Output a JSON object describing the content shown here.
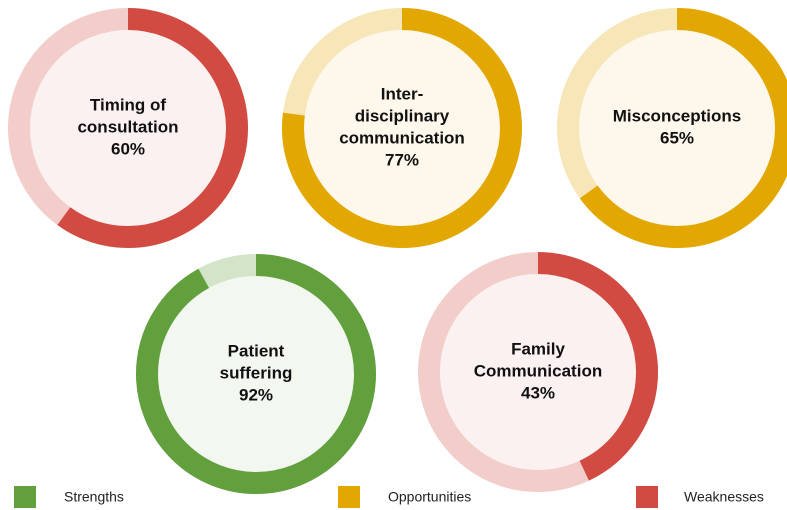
{
  "chart_data": [
    {
      "type": "donut",
      "title": [
        "Timing of",
        "consultation"
      ],
      "series": [
        {
          "name": "Weaknesses",
          "color": "#d14b42",
          "values": [
            60
          ],
          "value_labels": [
            "60%"
          ]
        }
      ]
    },
    {
      "type": "donut",
      "title": [
        "Inter-",
        "disciplinary",
        "communication"
      ],
      "series": [
        {
          "name": "Opportunities",
          "color": "#e2a700",
          "values": [
            77
          ],
          "value_labels": [
            "77%"
          ]
        }
      ]
    },
    {
      "type": "donut",
      "title": [
        "Misconceptions"
      ],
      "series": [
        {
          "name": "Opportunities",
          "color": "#e2a700",
          "values": [
            65
          ],
          "value_labels": [
            "65%"
          ]
        }
      ]
    },
    {
      "type": "donut",
      "title": [
        "Patient",
        "suffering"
      ],
      "series": [
        {
          "name": "Strengths",
          "color": "#62a03e",
          "values": [
            92
          ],
          "value_labels": [
            "92%"
          ]
        }
      ]
    },
    {
      "type": "donut",
      "title": [
        "Family",
        "Communication"
      ],
      "series": [
        {
          "name": "Weaknesses",
          "color": "#d14b42",
          "values": [
            43
          ],
          "value_labels": [
            "43%"
          ]
        }
      ]
    }
  ],
  "legend": [
    {
      "name": "Strengths",
      "color": "#62a03e"
    },
    {
      "name": "Opportunities",
      "color": "#e2a700"
    },
    {
      "name": "Weaknesses",
      "color": "#d14b42"
    }
  ]
}
